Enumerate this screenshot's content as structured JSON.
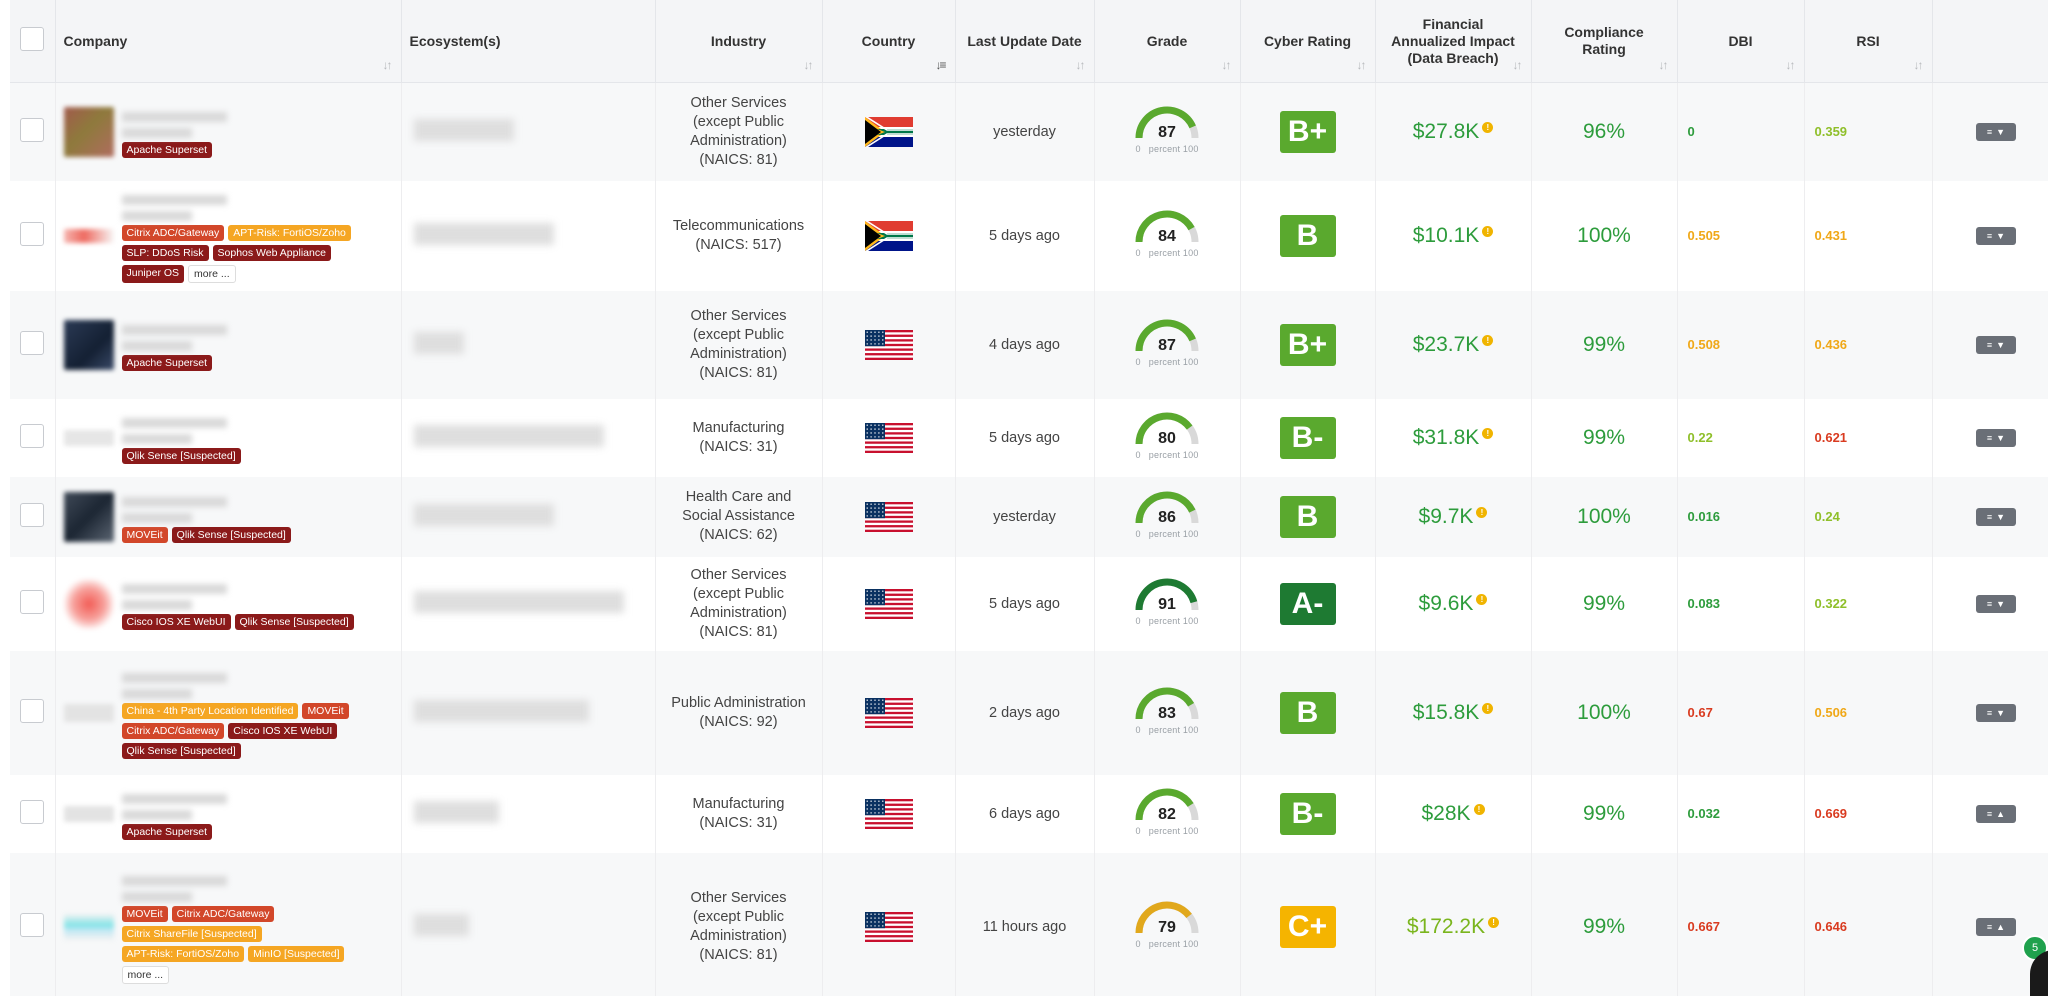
{
  "columns": {
    "company": "Company",
    "ecosystems": "Ecosystem(s)",
    "industry": "Industry",
    "country": "Country",
    "last_update": "Last Update Date",
    "grade": "Grade",
    "cyber_rating": "Cyber Rating",
    "financial_l1": "Financial",
    "financial_l2": "Annualized Impact",
    "financial_l3": "(Data Breach)",
    "compliance_l1": "Compliance",
    "compliance_l2": "Rating",
    "dbi": "DBI",
    "rsi": "RSI"
  },
  "gauge_scale": {
    "min": "0",
    "label": "percent",
    "max": "100"
  },
  "colors": {
    "green": "#2d9c3c",
    "lime": "#5aa92e",
    "dark_green": "#1e7a32",
    "amber": "#e1a81c",
    "orange": "#f5a623",
    "red": "#d93b20",
    "badge_green": "#1fa14d"
  },
  "rows": [
    {
      "tags": [
        {
          "label": "Apache Superset",
          "style": "dark"
        }
      ],
      "industry": [
        "Other Services",
        "(except Public",
        "Administration)",
        "(NAICS: 81)"
      ],
      "country": "za",
      "last_update": "yesterday",
      "grade": 87,
      "rating": "B+",
      "rating_color": "#5aa92e",
      "financial": "$27.8K",
      "financial_color": "#2d9c3c",
      "compliance": "96%",
      "dbi": "0",
      "dbi_color": "#2d9c3c",
      "rsi": "0.359",
      "rsi_color": "#8fbf2a"
    },
    {
      "tags": [
        {
          "label": "Citrix ADC/Gateway",
          "style": "red"
        },
        {
          "label": "APT-Risk: FortiOS/Zoho",
          "style": "orange"
        },
        {
          "label": "SLP: DDoS Risk",
          "style": "dark"
        },
        {
          "label": "Sophos Web Appliance",
          "style": "dark"
        },
        {
          "label": "Juniper OS",
          "style": "dark"
        },
        {
          "label": "more ...",
          "style": "more"
        }
      ],
      "industry": [
        "Telecommunications",
        "(NAICS: 517)"
      ],
      "country": "za",
      "last_update": "5 days ago",
      "grade": 84,
      "rating": "B",
      "rating_color": "#5aa92e",
      "financial": "$10.1K",
      "financial_color": "#2d9c3c",
      "compliance": "100%",
      "dbi": "0.505",
      "dbi_color": "#f0a818",
      "rsi": "0.431",
      "rsi_color": "#f0a818"
    },
    {
      "tags": [
        {
          "label": "Apache Superset",
          "style": "dark"
        }
      ],
      "industry": [
        "Other Services",
        "(except Public",
        "Administration)",
        "(NAICS: 81)"
      ],
      "country": "us",
      "last_update": "4 days ago",
      "grade": 87,
      "rating": "B+",
      "rating_color": "#5aa92e",
      "financial": "$23.7K",
      "financial_color": "#2d9c3c",
      "compliance": "99%",
      "dbi": "0.508",
      "dbi_color": "#f0a818",
      "rsi": "0.436",
      "rsi_color": "#f0a818"
    },
    {
      "tags": [
        {
          "label": "Qlik Sense [Suspected]",
          "style": "dark"
        }
      ],
      "industry": [
        "Manufacturing",
        "(NAICS: 31)"
      ],
      "country": "us",
      "last_update": "5 days ago",
      "grade": 80,
      "rating": "B-",
      "rating_color": "#5aa92e",
      "financial": "$31.8K",
      "financial_color": "#2d9c3c",
      "compliance": "99%",
      "dbi": "0.22",
      "dbi_color": "#8fbf2a",
      "rsi": "0.621",
      "rsi_color": "#d93b20"
    },
    {
      "tags": [
        {
          "label": "MOVEit",
          "style": "red"
        },
        {
          "label": "Qlik Sense [Suspected]",
          "style": "dark"
        }
      ],
      "industry": [
        "Health Care and",
        "Social Assistance",
        "(NAICS: 62)"
      ],
      "country": "us",
      "last_update": "yesterday",
      "grade": 86,
      "rating": "B",
      "rating_color": "#5aa92e",
      "financial": "$9.7K",
      "financial_color": "#2d9c3c",
      "compliance": "100%",
      "dbi": "0.016",
      "dbi_color": "#2d9c3c",
      "rsi": "0.24",
      "rsi_color": "#8fbf2a"
    },
    {
      "tags": [
        {
          "label": "Cisco IOS XE WebUI",
          "style": "dark"
        },
        {
          "label": "Qlik Sense [Suspected]",
          "style": "dark"
        }
      ],
      "industry": [
        "Other Services",
        "(except Public",
        "Administration)",
        "(NAICS: 81)"
      ],
      "country": "us",
      "last_update": "5 days ago",
      "grade": 91,
      "rating": "A-",
      "rating_color": "#1e7a32",
      "financial": "$9.6K",
      "financial_color": "#2d9c3c",
      "compliance": "99%",
      "dbi": "0.083",
      "dbi_color": "#2d9c3c",
      "rsi": "0.322",
      "rsi_color": "#8fbf2a"
    },
    {
      "tags": [
        {
          "label": "China - 4th Party Location Identified",
          "style": "orange"
        },
        {
          "label": "MOVEit",
          "style": "red"
        },
        {
          "label": "Citrix ADC/Gateway",
          "style": "red"
        },
        {
          "label": "Cisco IOS XE WebUI",
          "style": "dark"
        },
        {
          "label": "Qlik Sense [Suspected]",
          "style": "dark"
        }
      ],
      "industry": [
        "Public Administration",
        "(NAICS: 92)"
      ],
      "country": "us",
      "last_update": "2 days ago",
      "grade": 83,
      "rating": "B",
      "rating_color": "#5aa92e",
      "financial": "$15.8K",
      "financial_color": "#2d9c3c",
      "compliance": "100%",
      "dbi": "0.67",
      "dbi_color": "#d93b20",
      "rsi": "0.506",
      "rsi_color": "#f0a818"
    },
    {
      "tags": [
        {
          "label": "Apache Superset",
          "style": "dark"
        }
      ],
      "industry": [
        "Manufacturing",
        "(NAICS: 31)"
      ],
      "country": "us",
      "last_update": "6 days ago",
      "grade": 82,
      "rating": "B-",
      "rating_color": "#5aa92e",
      "financial": "$28K",
      "financial_color": "#2d9c3c",
      "compliance": "99%",
      "dbi": "0.032",
      "dbi_color": "#2d9c3c",
      "rsi": "0.669",
      "rsi_color": "#d93b20"
    },
    {
      "tags": [
        {
          "label": "MOVEit",
          "style": "red"
        },
        {
          "label": "Citrix ADC/Gateway",
          "style": "red"
        },
        {
          "label": "Citrix ShareFile [Suspected]",
          "style": "orange"
        },
        {
          "label": "APT-Risk: FortiOS/Zoho",
          "style": "orange"
        },
        {
          "label": "MinIO [Suspected]",
          "style": "orange"
        },
        {
          "label": "more ...",
          "style": "more"
        }
      ],
      "industry": [
        "Other Services",
        "(except Public",
        "Administration)",
        "(NAICS: 81)"
      ],
      "country": "us",
      "last_update": "11 hours ago",
      "grade": 79,
      "rating": "C+",
      "rating_color": "#f5b400",
      "financial": "$172.2K",
      "financial_color": "#7ab51d",
      "compliance": "99%",
      "dbi": "0.667",
      "dbi_color": "#d93b20",
      "rsi": "0.646",
      "rsi_color": "#d93b20"
    }
  ],
  "notification_count": "5"
}
